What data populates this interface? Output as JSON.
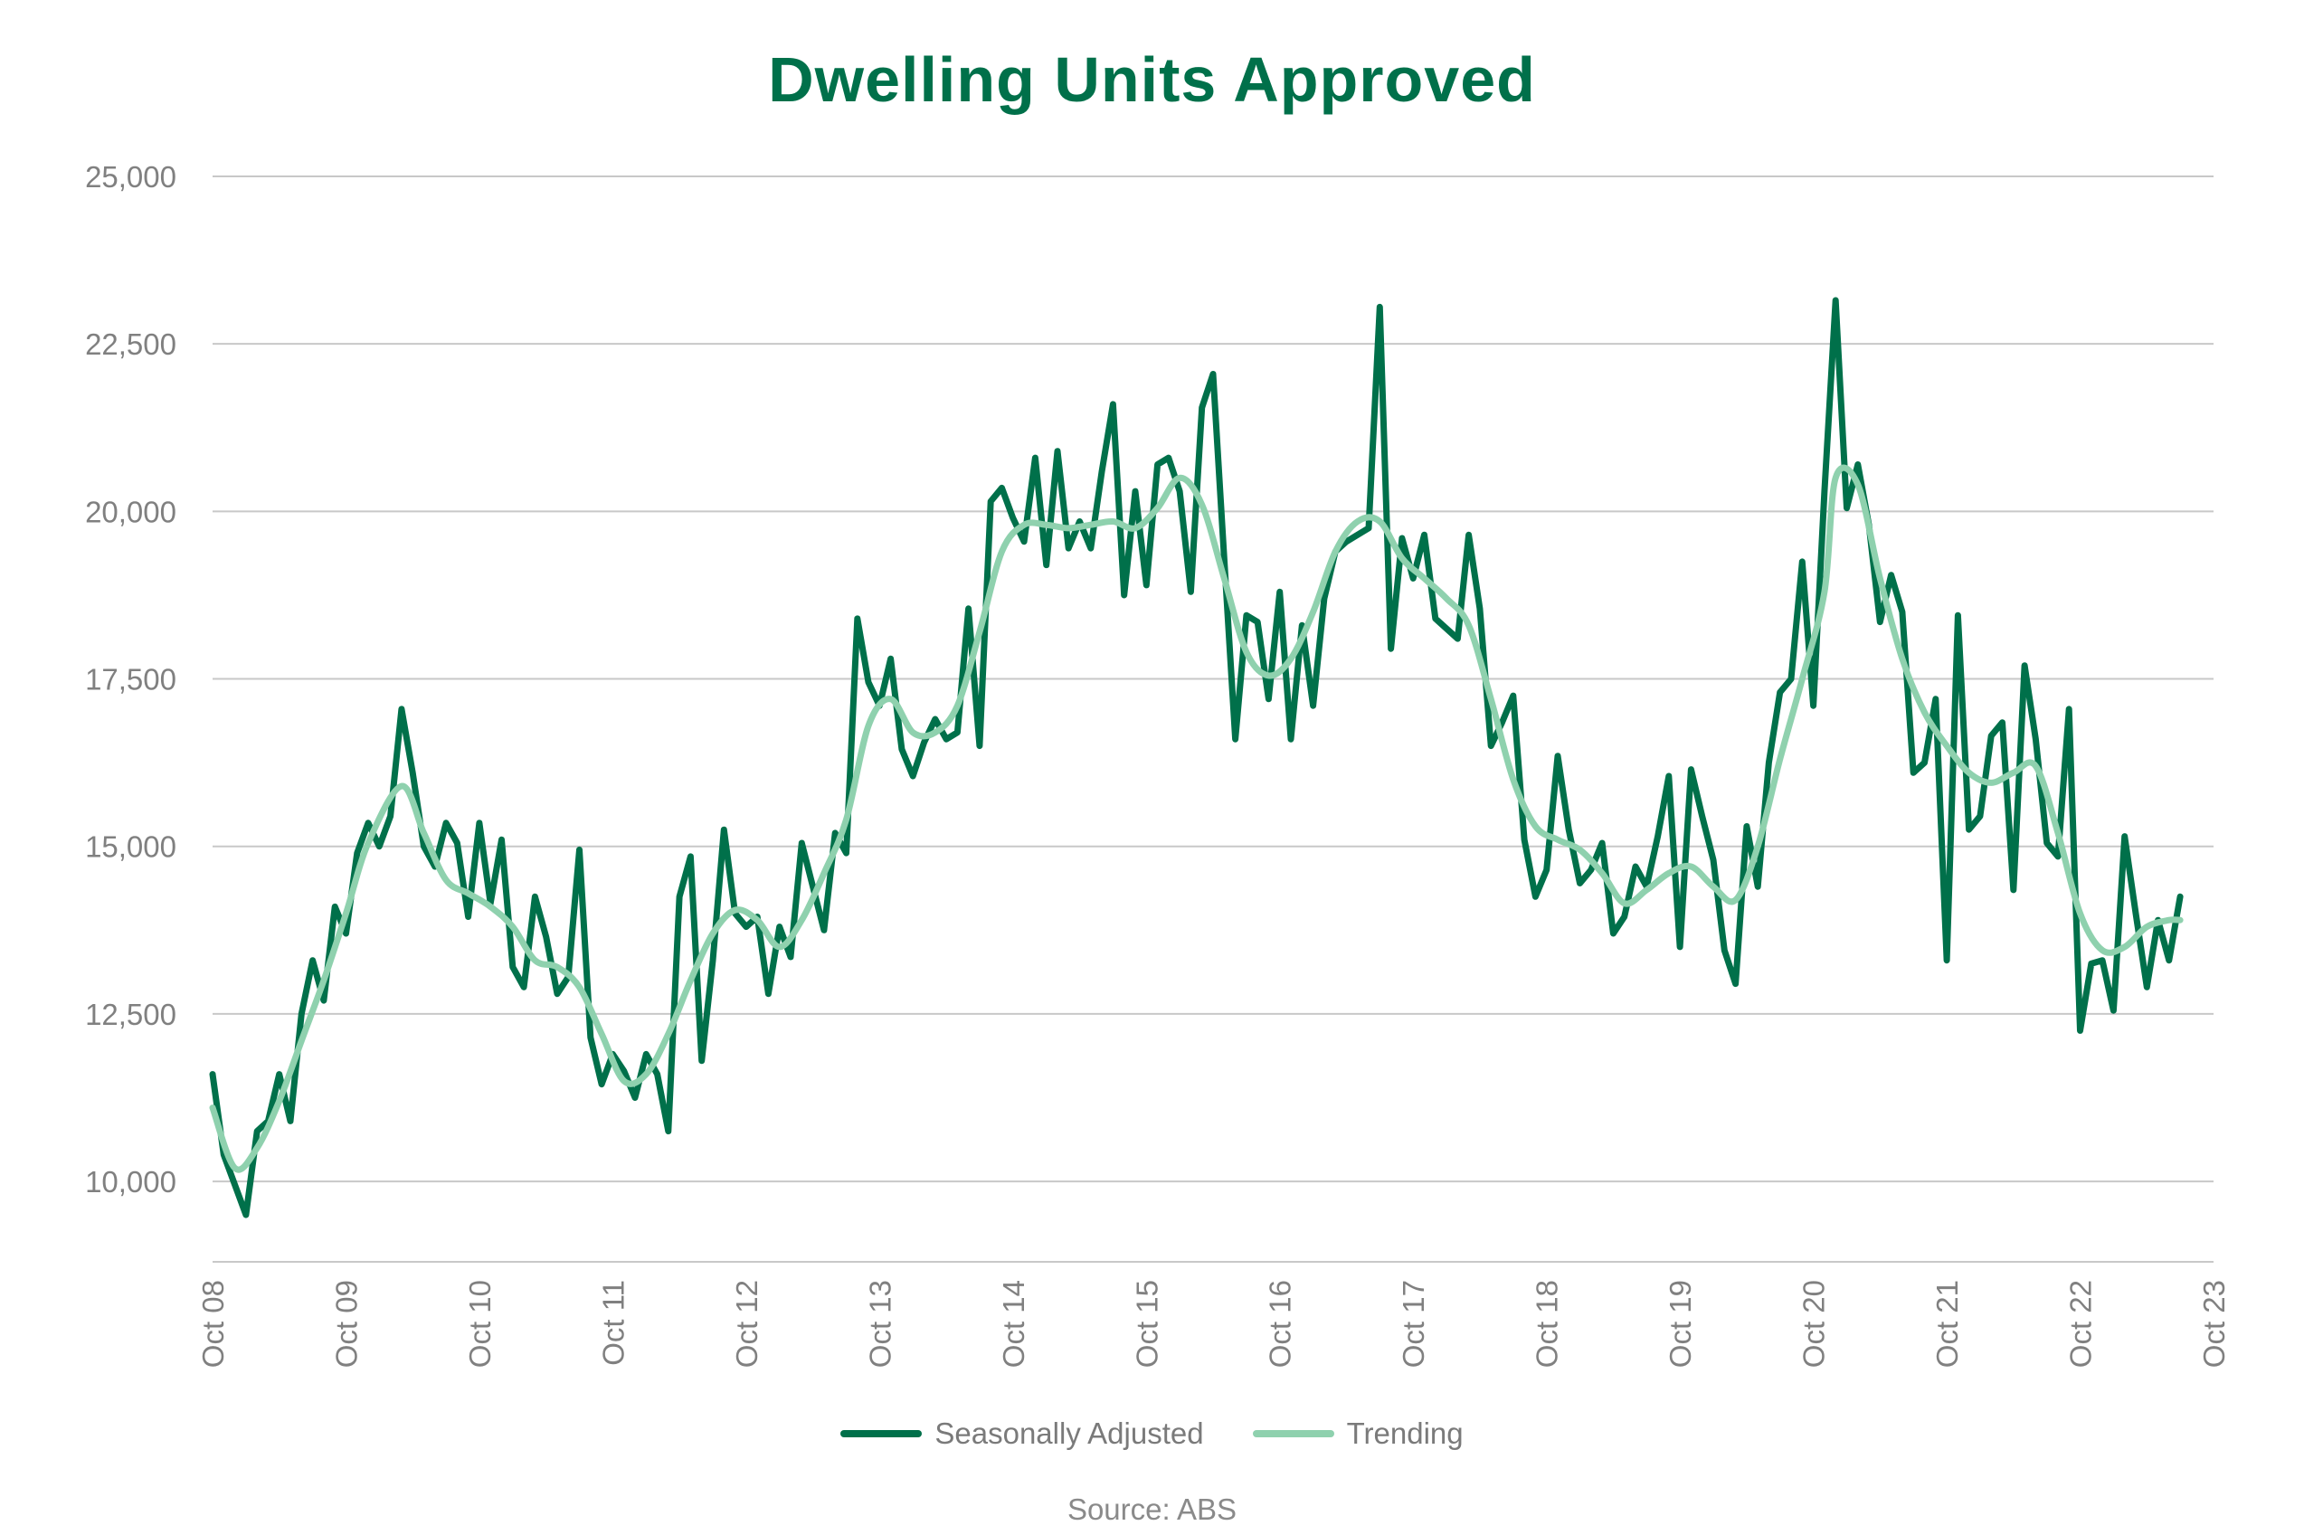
{
  "title": "Dwelling Units Approved",
  "source": "Source: ABS",
  "colors": {
    "title": "#00704A",
    "seasonally_adjusted": "#00704A",
    "trending": "#8FD1AE",
    "grid": "#c8c8c8",
    "tick": "#808080"
  },
  "chart_data": {
    "type": "line",
    "title": "Dwelling Units Approved",
    "xlabel": "",
    "ylabel": "",
    "ylim": [
      8800,
      25000
    ],
    "grid": true,
    "legend_position": "bottom",
    "yticks": [
      10000,
      12500,
      15000,
      17500,
      20000,
      22500,
      25000
    ],
    "ytick_labels": [
      "10,000",
      "12,500",
      "15,000",
      "17,500",
      "20,000",
      "22,500",
      "25,000"
    ],
    "xtick_labels": [
      "Oct 08",
      "Oct 09",
      "Oct 10",
      "Oct 11",
      "Oct 12",
      "Oct 13",
      "Oct 14",
      "Oct 15",
      "Oct 16",
      "Oct 17",
      "Oct 18",
      "Oct 19",
      "Oct 20",
      "Oct 21",
      "Oct 22",
      "Oct 23"
    ],
    "x_start": "2008-10",
    "x_end": "2023-10",
    "series": [
      {
        "name": "Seasonally Adjusted",
        "color": "#00704A",
        "points": [
          [
            "2008-10",
            11600
          ],
          [
            "2008-11",
            10400
          ],
          [
            "2008-12",
            9950
          ],
          [
            "2009-01",
            9500
          ],
          [
            "2009-02",
            10750
          ],
          [
            "2009-03",
            10900
          ],
          [
            "2009-04",
            11600
          ],
          [
            "2009-05",
            10900
          ],
          [
            "2009-06",
            12500
          ],
          [
            "2009-07",
            13300
          ],
          [
            "2009-08",
            12700
          ],
          [
            "2009-09",
            14100
          ],
          [
            "2009-10",
            13700
          ],
          [
            "2009-11",
            14900
          ],
          [
            "2009-12",
            15350
          ],
          [
            "2010-01",
            15000
          ],
          [
            "2010-02",
            15450
          ],
          [
            "2010-03",
            17050
          ],
          [
            "2010-04",
            16100
          ],
          [
            "2010-05",
            15000
          ],
          [
            "2010-06",
            14700
          ],
          [
            "2010-07",
            15350
          ],
          [
            "2010-08",
            15050
          ],
          [
            "2010-09",
            13950
          ],
          [
            "2010-10",
            15350
          ],
          [
            "2010-11",
            14150
          ],
          [
            "2010-12",
            15100
          ],
          [
            "2011-01",
            13200
          ],
          [
            "2011-02",
            12900
          ],
          [
            "2011-03",
            14250
          ],
          [
            "2011-04",
            13650
          ],
          [
            "2011-05",
            12800
          ],
          [
            "2011-06",
            13050
          ],
          [
            "2011-07",
            14950
          ],
          [
            "2011-08",
            12150
          ],
          [
            "2011-09",
            11450
          ],
          [
            "2011-10",
            11900
          ],
          [
            "2011-11",
            11650
          ],
          [
            "2011-12",
            11250
          ],
          [
            "2012-01",
            11900
          ],
          [
            "2012-02",
            11600
          ],
          [
            "2012-03",
            10750
          ],
          [
            "2012-04",
            14250
          ],
          [
            "2012-05",
            14850
          ],
          [
            "2012-06",
            11800
          ],
          [
            "2012-07",
            13300
          ],
          [
            "2012-08",
            15250
          ],
          [
            "2012-09",
            14000
          ],
          [
            "2012-10",
            13800
          ],
          [
            "2012-11",
            13950
          ],
          [
            "2012-12",
            12800
          ],
          [
            "2013-01",
            13800
          ],
          [
            "2013-02",
            13350
          ],
          [
            "2013-03",
            15050
          ],
          [
            "2013-04",
            14400
          ],
          [
            "2013-05",
            13750
          ],
          [
            "2013-06",
            15200
          ],
          [
            "2013-07",
            14900
          ],
          [
            "2013-08",
            18400
          ],
          [
            "2013-09",
            17450
          ],
          [
            "2013-10",
            17100
          ],
          [
            "2013-11",
            17800
          ],
          [
            "2013-12",
            16450
          ],
          [
            "2014-01",
            16050
          ],
          [
            "2014-02",
            16550
          ],
          [
            "2014-03",
            16900
          ],
          [
            "2014-04",
            16600
          ],
          [
            "2014-05",
            16700
          ],
          [
            "2014-06",
            18550
          ],
          [
            "2014-07",
            16500
          ],
          [
            "2014-08",
            20150
          ],
          [
            "2014-09",
            20350
          ],
          [
            "2014-10",
            19900
          ],
          [
            "2014-11",
            19550
          ],
          [
            "2014-12",
            20800
          ],
          [
            "2015-01",
            19200
          ],
          [
            "2015-02",
            20900
          ],
          [
            "2015-03",
            19450
          ],
          [
            "2015-04",
            19850
          ],
          [
            "2015-05",
            19450
          ],
          [
            "2015-06",
            20600
          ],
          [
            "2015-07",
            21600
          ],
          [
            "2015-08",
            18750
          ],
          [
            "2015-09",
            20300
          ],
          [
            "2015-10",
            18900
          ],
          [
            "2015-11",
            20700
          ],
          [
            "2015-12",
            20800
          ],
          [
            "2016-01",
            20300
          ],
          [
            "2016-02",
            18800
          ],
          [
            "2016-03",
            21550
          ],
          [
            "2016-04",
            22050
          ],
          [
            "2016-05",
            19300
          ],
          [
            "2016-06",
            16600
          ],
          [
            "2016-07",
            18450
          ],
          [
            "2016-08",
            18350
          ],
          [
            "2016-09",
            17200
          ],
          [
            "2016-10",
            18800
          ],
          [
            "2016-11",
            16600
          ],
          [
            "2016-12",
            18300
          ],
          [
            "2017-01",
            17100
          ],
          [
            "2017-02",
            18700
          ],
          [
            "2017-03",
            19400
          ],
          [
            "2017-04",
            19550
          ],
          [
            "2017-05",
            19650
          ],
          [
            "2017-06",
            19750
          ],
          [
            "2017-07",
            23050
          ],
          [
            "2017-08",
            17950
          ],
          [
            "2017-09",
            19600
          ],
          [
            "2017-10",
            19000
          ],
          [
            "2017-11",
            19650
          ],
          [
            "2017-12",
            18400
          ],
          [
            "2018-01",
            18250
          ],
          [
            "2018-02",
            18100
          ],
          [
            "2018-03",
            19650
          ],
          [
            "2018-04",
            18550
          ],
          [
            "2018-05",
            16500
          ],
          [
            "2018-06",
            16850
          ],
          [
            "2018-07",
            17250
          ],
          [
            "2018-08",
            15100
          ],
          [
            "2018-09",
            14250
          ],
          [
            "2018-10",
            14650
          ],
          [
            "2018-11",
            16350
          ],
          [
            "2018-12",
            15250
          ],
          [
            "2019-01",
            14450
          ],
          [
            "2019-02",
            14650
          ],
          [
            "2019-03",
            15050
          ],
          [
            "2019-04",
            13700
          ],
          [
            "2019-05",
            13950
          ],
          [
            "2019-06",
            14700
          ],
          [
            "2019-07",
            14400
          ],
          [
            "2019-08",
            15150
          ],
          [
            "2019-09",
            16050
          ],
          [
            "2019-10",
            13500
          ],
          [
            "2019-11",
            16150
          ],
          [
            "2019-12",
            15450
          ],
          [
            "2020-01",
            14800
          ],
          [
            "2020-02",
            13450
          ],
          [
            "2020-03",
            12950
          ],
          [
            "2020-04",
            15300
          ],
          [
            "2020-05",
            14400
          ],
          [
            "2020-06",
            16250
          ],
          [
            "2020-07",
            17300
          ],
          [
            "2020-08",
            17500
          ],
          [
            "2020-09",
            19250
          ],
          [
            "2020-10",
            17100
          ],
          [
            "2020-11",
            20300
          ],
          [
            "2020-12",
            23150
          ],
          [
            "2021-01",
            20050
          ],
          [
            "2021-02",
            20700
          ],
          [
            "2021-03",
            19800
          ],
          [
            "2021-04",
            18350
          ],
          [
            "2021-05",
            19050
          ],
          [
            "2021-06",
            18500
          ],
          [
            "2021-07",
            16100
          ],
          [
            "2021-08",
            16250
          ],
          [
            "2021-09",
            17200
          ],
          [
            "2021-10",
            13300
          ],
          [
            "2021-11",
            18450
          ],
          [
            "2021-12",
            15250
          ],
          [
            "2022-01",
            15450
          ],
          [
            "2022-02",
            16650
          ],
          [
            "2022-03",
            16850
          ],
          [
            "2022-04",
            14350
          ],
          [
            "2022-05",
            17700
          ],
          [
            "2022-06",
            16600
          ],
          [
            "2022-07",
            15050
          ],
          [
            "2022-08",
            14850
          ],
          [
            "2022-09",
            17050
          ],
          [
            "2022-10",
            12250
          ],
          [
            "2022-11",
            13250
          ],
          [
            "2022-12",
            13300
          ],
          [
            "2023-01",
            12550
          ],
          [
            "2023-02",
            15150
          ],
          [
            "2023-03",
            14000
          ],
          [
            "2023-04",
            12900
          ],
          [
            "2023-05",
            13900
          ],
          [
            "2023-06",
            13300
          ],
          [
            "2023-07",
            14250
          ]
        ]
      },
      {
        "name": "Trending",
        "color": "#8FD1AE",
        "points": [
          [
            "2008-10",
            11100
          ],
          [
            "2008-12",
            10200
          ],
          [
            "2009-02",
            10500
          ],
          [
            "2009-04",
            11200
          ],
          [
            "2009-06",
            12100
          ],
          [
            "2009-08",
            13000
          ],
          [
            "2009-10",
            14000
          ],
          [
            "2009-12",
            15050
          ],
          [
            "2010-03",
            15900
          ],
          [
            "2010-05",
            15200
          ],
          [
            "2010-07",
            14500
          ],
          [
            "2010-09",
            14300
          ],
          [
            "2010-11",
            14100
          ],
          [
            "2011-01",
            13800
          ],
          [
            "2011-03",
            13300
          ],
          [
            "2011-05",
            13200
          ],
          [
            "2011-07",
            12900
          ],
          [
            "2011-09",
            12200
          ],
          [
            "2011-11",
            11500
          ],
          [
            "2012-01",
            11600
          ],
          [
            "2012-03",
            12200
          ],
          [
            "2012-05",
            13000
          ],
          [
            "2012-07",
            13700
          ],
          [
            "2012-09",
            14050
          ],
          [
            "2012-11",
            13900
          ],
          [
            "2013-01",
            13500
          ],
          [
            "2013-03",
            13900
          ],
          [
            "2013-05",
            14600
          ],
          [
            "2013-07",
            15400
          ],
          [
            "2013-09",
            16800
          ],
          [
            "2013-11",
            17200
          ],
          [
            "2014-01",
            16700
          ],
          [
            "2014-03",
            16700
          ],
          [
            "2014-05",
            17100
          ],
          [
            "2014-07",
            18200
          ],
          [
            "2014-09",
            19400
          ],
          [
            "2014-11",
            19800
          ],
          [
            "2015-01",
            19800
          ],
          [
            "2015-03",
            19750
          ],
          [
            "2015-05",
            19800
          ],
          [
            "2015-07",
            19850
          ],
          [
            "2015-09",
            19750
          ],
          [
            "2015-11",
            20050
          ],
          [
            "2016-01",
            20500
          ],
          [
            "2016-03",
            20100
          ],
          [
            "2016-05",
            19000
          ],
          [
            "2016-07",
            17900
          ],
          [
            "2016-09",
            17550
          ],
          [
            "2016-11",
            17800
          ],
          [
            "2017-01",
            18500
          ],
          [
            "2017-03",
            19400
          ],
          [
            "2017-05",
            19850
          ],
          [
            "2017-07",
            19850
          ],
          [
            "2017-09",
            19300
          ],
          [
            "2017-11",
            19000
          ],
          [
            "2018-01",
            18700
          ],
          [
            "2018-03",
            18300
          ],
          [
            "2018-05",
            17200
          ],
          [
            "2018-07",
            16000
          ],
          [
            "2018-09",
            15300
          ],
          [
            "2018-11",
            15100
          ],
          [
            "2019-01",
            14950
          ],
          [
            "2019-03",
            14600
          ],
          [
            "2019-05",
            14150
          ],
          [
            "2019-07",
            14350
          ],
          [
            "2019-09",
            14600
          ],
          [
            "2019-11",
            14700
          ],
          [
            "2020-01",
            14400
          ],
          [
            "2020-03",
            14200
          ],
          [
            "2020-05",
            15000
          ],
          [
            "2020-07",
            16300
          ],
          [
            "2020-09",
            17500
          ],
          [
            "2020-11",
            18800
          ],
          [
            "2020-12",
            20500
          ],
          [
            "2021-02",
            20400
          ],
          [
            "2021-04",
            19000
          ],
          [
            "2021-06",
            17800
          ],
          [
            "2021-08",
            17000
          ],
          [
            "2021-10",
            16500
          ],
          [
            "2021-12",
            16100
          ],
          [
            "2022-02",
            15950
          ],
          [
            "2022-04",
            16100
          ],
          [
            "2022-06",
            16200
          ],
          [
            "2022-08",
            15200
          ],
          [
            "2022-10",
            14000
          ],
          [
            "2022-12",
            13450
          ],
          [
            "2023-02",
            13500
          ],
          [
            "2023-04",
            13800
          ],
          [
            "2023-06",
            13900
          ],
          [
            "2023-07",
            13900
          ]
        ]
      }
    ]
  }
}
